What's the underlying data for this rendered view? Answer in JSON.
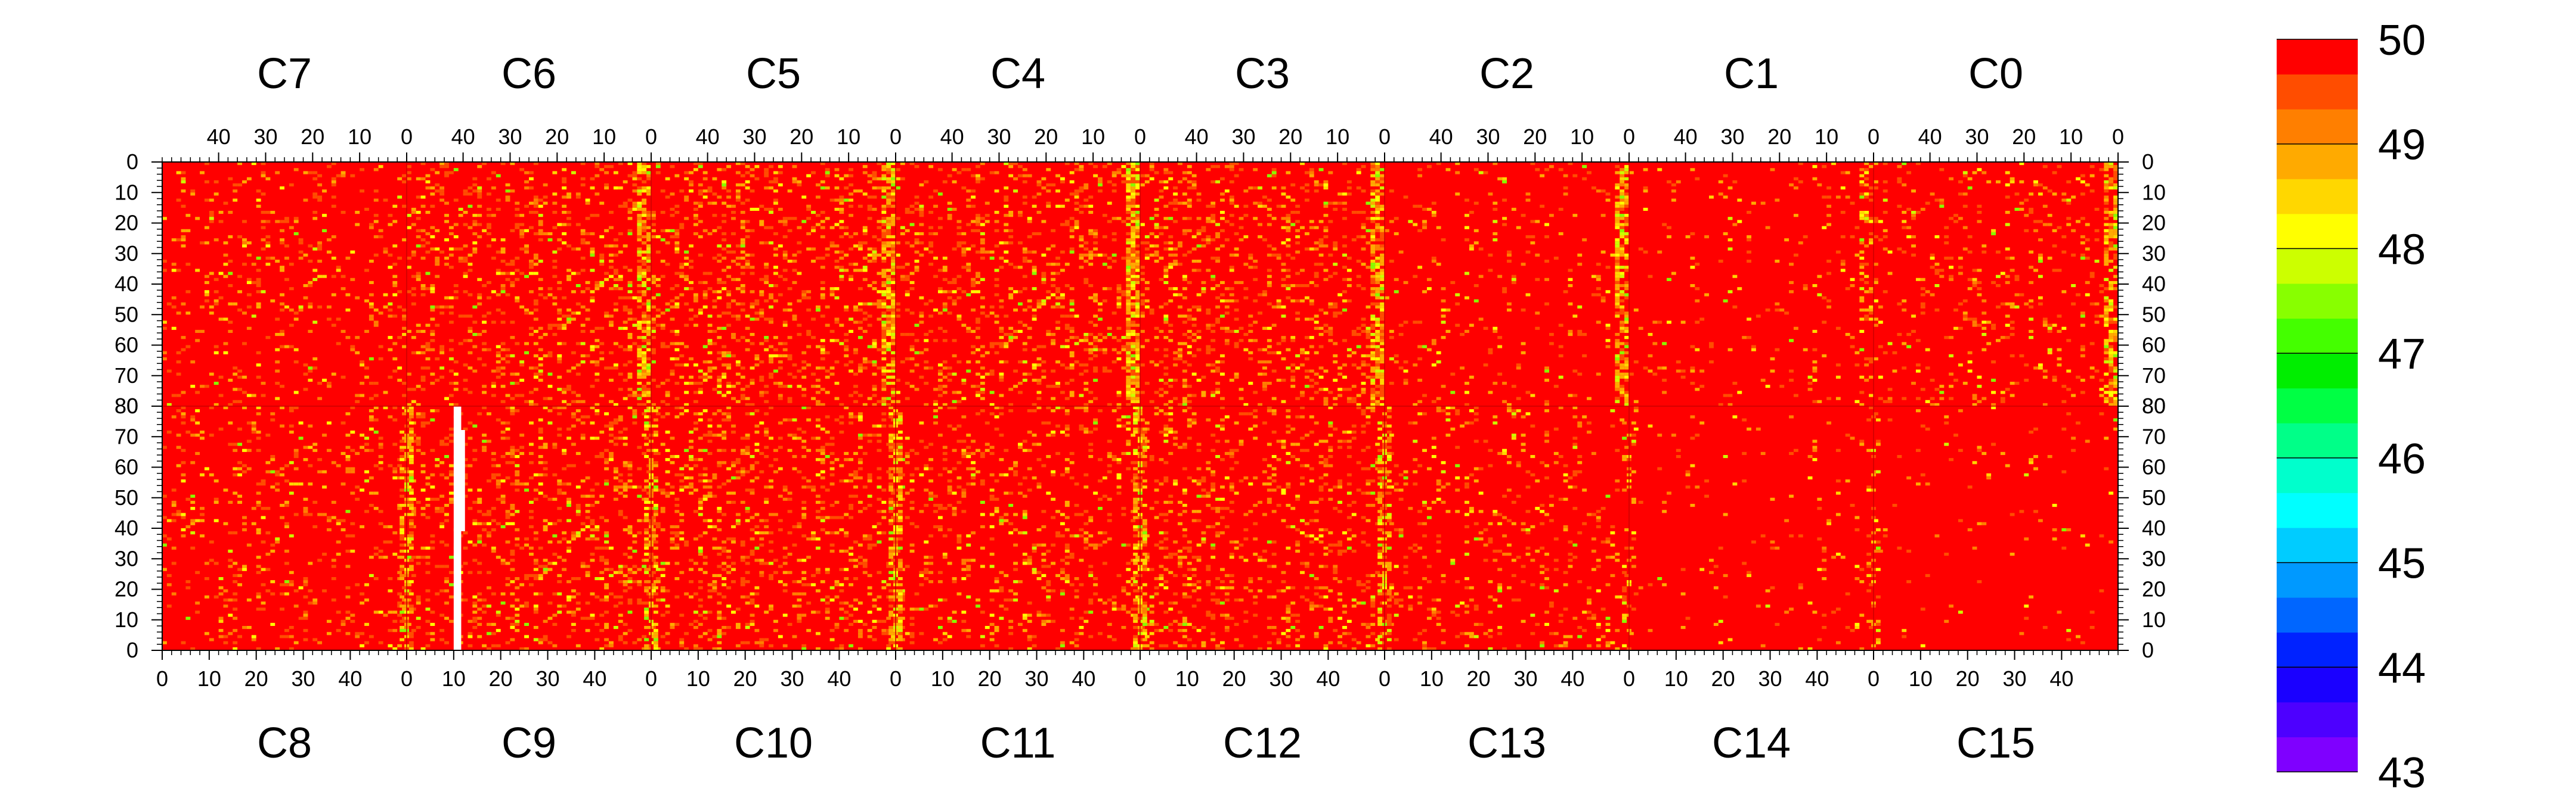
{
  "chart_data": {
    "type": "heatmap",
    "title": "",
    "top_chips": [
      "C7",
      "C6",
      "C5",
      "C4",
      "C3",
      "C2",
      "C1",
      "C0"
    ],
    "bottom_chips": [
      "C8",
      "C9",
      "C10",
      "C11",
      "C12",
      "C13",
      "C14",
      "C15"
    ],
    "x_range_per_chip": [
      0,
      52
    ],
    "y_range_per_half": [
      0,
      80
    ],
    "top_x_tick_labels": [
      "40",
      "30",
      "20",
      "10",
      "0"
    ],
    "bottom_x_tick_labels": [
      "0",
      "10",
      "20",
      "30",
      "40"
    ],
    "top_y_tick_labels": [
      "0",
      "10",
      "20",
      "30",
      "40",
      "50",
      "60",
      "70",
      "80"
    ],
    "bottom_y_tick_labels": [
      "80",
      "70",
      "60",
      "50",
      "40",
      "30",
      "20",
      "10",
      "0"
    ],
    "zlim": [
      43,
      50
    ],
    "z_tick_labels": [
      "50",
      "49",
      "48",
      "47",
      "46",
      "45",
      "44",
      "43"
    ],
    "dominant_value": 50,
    "colors": {
      "palette": [
        "#7f00ff",
        "#4d00ff",
        "#1a00ff",
        "#0022ff",
        "#0066ff",
        "#0099ff",
        "#00ccff",
        "#00ffff",
        "#00ffcc",
        "#00ff88",
        "#00ff44",
        "#00ee00",
        "#44ff00",
        "#88ff00",
        "#ccff00",
        "#ffff00",
        "#ffd700",
        "#ffaa00",
        "#ff7f00",
        "#ff4d00",
        "#ff0000"
      ],
      "background": "#ff0000",
      "missing": "#ffffff"
    },
    "notes_visible": {
      "hot_columns_top": [
        "C6 x=0",
        "C5 x=0",
        "C4 x=0",
        "C3 x=0",
        "C2 x=0",
        "C0 x=0"
      ],
      "hot_columns_bottom": [
        "C9 x=0",
        "C10 x=0",
        "C11 x=0",
        "C12 x=0",
        "C13 x=0"
      ],
      "missing_column": "C9 x=10..11, y=0..80"
    }
  }
}
